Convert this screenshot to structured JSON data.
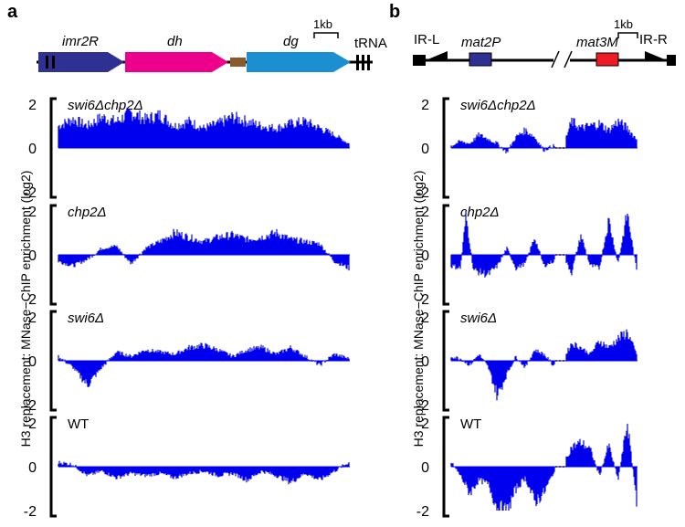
{
  "panels": {
    "a": {
      "letter": "a",
      "ylabel": "H3 replacement: MNase−ChIP enrichment (log2)",
      "scale_label": "1kb",
      "features": [
        {
          "name": "imr2R",
          "color": "#2e3192",
          "kind": "arrow"
        },
        {
          "name": "dh",
          "color": "#ec008c",
          "kind": "arrow"
        },
        {
          "name": "",
          "color": "#8b5a2b",
          "kind": "box"
        },
        {
          "name": "dg",
          "color": "#1b8fcf",
          "kind": "arrow"
        },
        {
          "name": "tRNA",
          "color": "#000000",
          "kind": "bars"
        }
      ]
    },
    "b": {
      "letter": "b",
      "ylabel": "H3 replacement: MNase−ChIP enrichment (log2)",
      "scale_label": "1kb",
      "features": [
        {
          "name": "IR-L",
          "color": "#000000",
          "kind": "wedge"
        },
        {
          "name": "mat2P",
          "color": "#2e3192",
          "kind": "box"
        },
        {
          "name": "mat3M",
          "color": "#ed1c24",
          "kind": "box"
        },
        {
          "name": "IR-R",
          "color": "#000000",
          "kind": "wedge"
        }
      ]
    }
  },
  "chart_data": [
    {
      "type": "area",
      "panel": "a",
      "title": "swi6Δchp2Δ",
      "yticks": [
        "2",
        "0",
        "-2"
      ],
      "ylim": [
        -2,
        2
      ],
      "color": "#0000ee",
      "profile": [
        [
          0,
          1.0
        ],
        [
          0.05,
          1.3
        ],
        [
          0.1,
          1.0
        ],
        [
          0.15,
          1.4
        ],
        [
          0.2,
          1.2
        ],
        [
          0.25,
          1.6
        ],
        [
          0.3,
          1.3
        ],
        [
          0.35,
          1.5
        ],
        [
          0.4,
          1.0
        ],
        [
          0.45,
          1.2
        ],
        [
          0.5,
          0.9
        ],
        [
          0.55,
          1.1
        ],
        [
          0.6,
          1.4
        ],
        [
          0.65,
          1.2
        ],
        [
          0.7,
          1.0
        ],
        [
          0.75,
          0.9
        ],
        [
          0.8,
          1.1
        ],
        [
          0.85,
          1.2
        ],
        [
          0.9,
          0.9
        ],
        [
          0.95,
          0.6
        ],
        [
          1.0,
          0.2
        ]
      ]
    },
    {
      "type": "area",
      "panel": "a",
      "title": "chp2Δ",
      "yticks": [
        "2",
        "0",
        "-2"
      ],
      "ylim": [
        -2,
        2
      ],
      "color": "#0000ee",
      "profile": [
        [
          0,
          -0.3
        ],
        [
          0.05,
          -0.5
        ],
        [
          0.1,
          -0.2
        ],
        [
          0.15,
          0.3
        ],
        [
          0.2,
          0.4
        ],
        [
          0.25,
          -0.4
        ],
        [
          0.3,
          0.3
        ],
        [
          0.35,
          0.6
        ],
        [
          0.4,
          1.0
        ],
        [
          0.45,
          0.8
        ],
        [
          0.5,
          0.6
        ],
        [
          0.55,
          0.8
        ],
        [
          0.6,
          0.9
        ],
        [
          0.65,
          0.7
        ],
        [
          0.7,
          0.8
        ],
        [
          0.75,
          1.0
        ],
        [
          0.8,
          0.7
        ],
        [
          0.85,
          0.6
        ],
        [
          0.9,
          0.5
        ],
        [
          0.95,
          -0.3
        ],
        [
          1.0,
          -0.6
        ]
      ]
    },
    {
      "type": "area",
      "panel": "a",
      "title": "swi6Δ",
      "yticks": [
        "2",
        "0",
        "-2"
      ],
      "ylim": [
        -2,
        2
      ],
      "color": "#0000ee",
      "profile": [
        [
          0,
          0.2
        ],
        [
          0.05,
          -0.3
        ],
        [
          0.1,
          -1.1
        ],
        [
          0.15,
          -0.3
        ],
        [
          0.2,
          0.4
        ],
        [
          0.25,
          0.2
        ],
        [
          0.3,
          0.5
        ],
        [
          0.35,
          0.4
        ],
        [
          0.4,
          0.3
        ],
        [
          0.45,
          0.6
        ],
        [
          0.5,
          0.7
        ],
        [
          0.55,
          0.5
        ],
        [
          0.6,
          0.2
        ],
        [
          0.65,
          0.5
        ],
        [
          0.7,
          0.6
        ],
        [
          0.75,
          0.3
        ],
        [
          0.8,
          0.6
        ],
        [
          0.85,
          0.2
        ],
        [
          0.9,
          -0.2
        ],
        [
          0.95,
          0.3
        ],
        [
          1.0,
          0.1
        ]
      ]
    },
    {
      "type": "area",
      "panel": "a",
      "title": "WT",
      "yticks": [
        "2",
        "0",
        "-2"
      ],
      "ylim": [
        -2,
        2
      ],
      "color": "#0000ee",
      "profile": [
        [
          0,
          0.2
        ],
        [
          0.05,
          0.1
        ],
        [
          0.1,
          -0.4
        ],
        [
          0.15,
          -0.2
        ],
        [
          0.2,
          -0.5
        ],
        [
          0.25,
          -0.3
        ],
        [
          0.3,
          -0.4
        ],
        [
          0.35,
          -0.3
        ],
        [
          0.4,
          -0.5
        ],
        [
          0.45,
          -0.3
        ],
        [
          0.5,
          -0.2
        ],
        [
          0.55,
          -0.4
        ],
        [
          0.6,
          -0.3
        ],
        [
          0.65,
          -0.6
        ],
        [
          0.7,
          -0.2
        ],
        [
          0.75,
          -0.4
        ],
        [
          0.8,
          -0.7
        ],
        [
          0.85,
          -0.3
        ],
        [
          0.9,
          -0.6
        ],
        [
          0.95,
          -0.2
        ],
        [
          1.0,
          0.2
        ]
      ]
    },
    {
      "type": "area",
      "panel": "b",
      "title": "swi6Δchp2Δ",
      "yticks": [
        "2",
        "0",
        "-2"
      ],
      "ylim": [
        -2,
        2
      ],
      "color": "#0000ee",
      "gap": [
        0.56,
        0.62
      ],
      "profile": [
        [
          0,
          0.1
        ],
        [
          0.05,
          0.3
        ],
        [
          0.1,
          0.2
        ],
        [
          0.15,
          0.6
        ],
        [
          0.2,
          0.4
        ],
        [
          0.25,
          0.2
        ],
        [
          0.3,
          -0.2
        ],
        [
          0.35,
          0.5
        ],
        [
          0.4,
          0.8
        ],
        [
          0.45,
          0.5
        ],
        [
          0.5,
          -0.1
        ],
        [
          0.55,
          0.1
        ],
        [
          0.6,
          0.0
        ],
        [
          0.65,
          1.2
        ],
        [
          0.7,
          0.9
        ],
        [
          0.75,
          1.0
        ],
        [
          0.8,
          1.1
        ],
        [
          0.85,
          0.8
        ],
        [
          0.9,
          1.2
        ],
        [
          0.95,
          0.9
        ],
        [
          1.0,
          0.4
        ]
      ]
    },
    {
      "type": "area",
      "panel": "b",
      "title": "chp2Δ",
      "yticks": [
        "2",
        "0",
        "-2"
      ],
      "ylim": [
        -2,
        2
      ],
      "color": "#0000ee",
      "gap": [
        0.56,
        0.62
      ],
      "profile": [
        [
          0,
          -0.5
        ],
        [
          0.05,
          -0.6
        ],
        [
          0.08,
          1.8
        ],
        [
          0.12,
          -0.7
        ],
        [
          0.2,
          -0.9
        ],
        [
          0.25,
          -0.5
        ],
        [
          0.3,
          0.3
        ],
        [
          0.35,
          -0.6
        ],
        [
          0.4,
          -0.4
        ],
        [
          0.45,
          0.8
        ],
        [
          0.5,
          -0.5
        ],
        [
          0.55,
          -0.3
        ],
        [
          0.6,
          0.0
        ],
        [
          0.65,
          -0.8
        ],
        [
          0.7,
          0.9
        ],
        [
          0.75,
          -0.5
        ],
        [
          0.8,
          -0.6
        ],
        [
          0.85,
          1.6
        ],
        [
          0.9,
          -0.4
        ],
        [
          0.95,
          1.9
        ],
        [
          1.0,
          -0.7
        ]
      ]
    },
    {
      "type": "area",
      "panel": "b",
      "title": "swi6Δ",
      "yticks": [
        "2",
        "0",
        "-2"
      ],
      "ylim": [
        -2,
        2
      ],
      "color": "#0000ee",
      "gap": [
        0.56,
        0.62
      ],
      "profile": [
        [
          0,
          0.2
        ],
        [
          0.05,
          0.1
        ],
        [
          0.1,
          -0.2
        ],
        [
          0.15,
          0.3
        ],
        [
          0.2,
          -0.3
        ],
        [
          0.25,
          -1.6
        ],
        [
          0.3,
          -0.6
        ],
        [
          0.35,
          0.2
        ],
        [
          0.4,
          -0.3
        ],
        [
          0.45,
          0.5
        ],
        [
          0.5,
          0.3
        ],
        [
          0.55,
          -0.2
        ],
        [
          0.6,
          0.0
        ],
        [
          0.65,
          0.8
        ],
        [
          0.7,
          0.6
        ],
        [
          0.75,
          0.3
        ],
        [
          0.8,
          0.9
        ],
        [
          0.85,
          0.6
        ],
        [
          0.9,
          1.0
        ],
        [
          0.95,
          1.3
        ],
        [
          1.0,
          0.3
        ]
      ]
    },
    {
      "type": "area",
      "panel": "b",
      "title": "WT",
      "yticks": [
        "2",
        "0",
        "-2"
      ],
      "ylim": [
        -2,
        2
      ],
      "color": "#0000ee",
      "gap": [
        0.56,
        0.62
      ],
      "profile": [
        [
          0,
          0.2
        ],
        [
          0.05,
          -0.4
        ],
        [
          0.1,
          -1.2
        ],
        [
          0.15,
          -0.6
        ],
        [
          0.2,
          -0.8
        ],
        [
          0.25,
          -1.9
        ],
        [
          0.3,
          -2.1
        ],
        [
          0.35,
          -1.0
        ],
        [
          0.4,
          -0.5
        ],
        [
          0.45,
          -1.6
        ],
        [
          0.5,
          -1.2
        ],
        [
          0.55,
          -0.3
        ],
        [
          0.6,
          0.0
        ],
        [
          0.65,
          0.9
        ],
        [
          0.7,
          1.1
        ],
        [
          0.75,
          0.8
        ],
        [
          0.8,
          -0.4
        ],
        [
          0.85,
          1.0
        ],
        [
          0.9,
          -0.6
        ],
        [
          0.95,
          2.0
        ],
        [
          1.0,
          -1.5
        ]
      ]
    }
  ]
}
